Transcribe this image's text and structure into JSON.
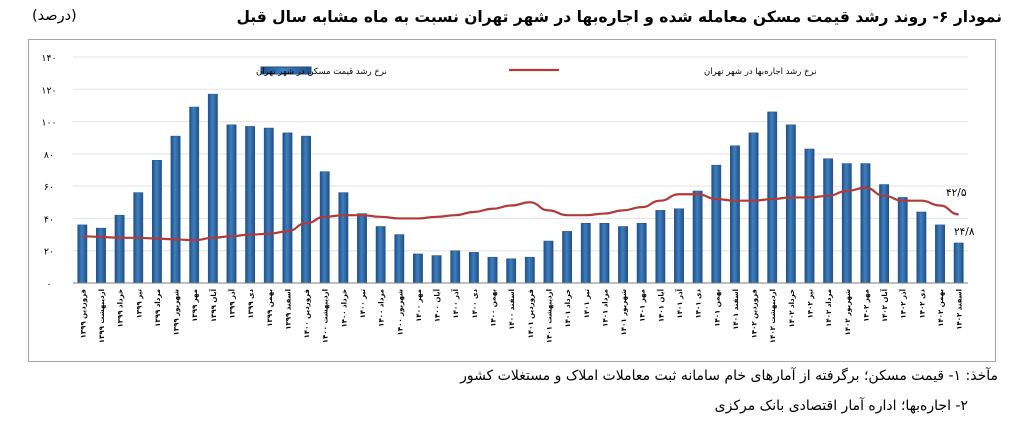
{
  "title": "نمودار ۶- روند رشد قیمت مسکن معامله شده و اجاره‌بها در شهر تهران نسبت به ماه مشابه سال قبل",
  "unit": "(درصد)",
  "sources": {
    "line1": "مآخذ: ۱- قیمت مسکن؛ برگرفته از آمارهای خام سامانه ثبت معاملات املاک و مستغلات کشور",
    "line2": "۲- اجاره‌بها؛ اداره آمار اقتصادی بانک مرکزی"
  },
  "colors": {
    "bar": "#3f7fbf",
    "bar_dark": "#1f4f86",
    "line": "#b33a3a",
    "grid": "#e3e3e3"
  },
  "chart_data": {
    "type": "bar",
    "ylim": [
      0,
      140
    ],
    "yticks": [
      "۰",
      "۲۰",
      "۴۰",
      "۶۰",
      "۸۰",
      "۱۰۰",
      "۱۲۰",
      "۱۴۰"
    ],
    "categories": [
      "فروردین ۱۳۹۹",
      "اردیبهشت ۱۳۹۹",
      "خرداد ۱۳۹۹",
      "تیر ۱۳۹۹",
      "مرداد ۱۳۹۹",
      "شهریور ۱۳۹۹",
      "مهر ۱۳۹۹",
      "آبان ۱۳۹۹",
      "آذر ۱۳۹۹",
      "دی ۱۳۹۹",
      "بهمن ۱۳۹۹",
      "اسفند ۱۳۹۹",
      "فروردین ۱۴۰۰",
      "اردیبهشت ۱۴۰۰",
      "خرداد ۱۴۰۰",
      "تیر ۱۴۰۰",
      "مرداد ۱۴۰۰",
      "شهریور ۱۴۰۰",
      "مهر ۱۴۰۰",
      "آبان ۱۴۰۰",
      "آذر ۱۴۰۰",
      "دی ۱۴۰۰",
      "بهمن ۱۴۰۰",
      "اسفند ۱۴۰۰",
      "فروردین ۱۴۰۱",
      "اردیبهشت ۱۴۰۱",
      "خرداد ۱۴۰۱",
      "تیر ۱۴۰۱",
      "مرداد ۱۴۰۱",
      "شهریور ۱۴۰۱",
      "مهر ۱۴۰۱",
      "آبان ۱۴۰۱",
      "آذر ۱۴۰۱",
      "دی ۱۴۰۱",
      "بهمن ۱۴۰۱",
      "اسفند ۱۴۰۱",
      "فروردین ۱۴۰۲",
      "اردیبهشت ۱۴۰۲",
      "خرداد ۱۴۰۲",
      "تیر ۱۴۰۲",
      "مرداد ۱۴۰۲",
      "شهریور ۱۴۰۲",
      "مهر ۱۴۰۲",
      "آبان ۱۴۰۲",
      "آذر ۱۴۰۲",
      "دی ۱۴۰۲",
      "بهمن ۱۴۰۲",
      "اسفند ۱۴۰۲"
    ],
    "series": [
      {
        "name": "نرخ رشد قیمت مسکن در شهر تهران",
        "type": "bar",
        "values": [
          36,
          34,
          42,
          56,
          76,
          91,
          109,
          117,
          98,
          97,
          96,
          93,
          91,
          69,
          56,
          43,
          35,
          30,
          18,
          17,
          20,
          19,
          16,
          15,
          16,
          26,
          32,
          37,
          37,
          35,
          37,
          45,
          46,
          57,
          73,
          85,
          93,
          106,
          98,
          83,
          77,
          74,
          74,
          61,
          53,
          44,
          36,
          24.8
        ]
      },
      {
        "name": "نرخ رشد اجاره‌بها در شهر تهران",
        "type": "line",
        "values": [
          29,
          28.5,
          28,
          28,
          27.5,
          27,
          26.5,
          28,
          29,
          30,
          30.5,
          32,
          37,
          41,
          42,
          42,
          41,
          40,
          40,
          41,
          42,
          44,
          46,
          48,
          50,
          45,
          42,
          42,
          43,
          45,
          47,
          51,
          55,
          55,
          52,
          51,
          51,
          52,
          53,
          53,
          54,
          57,
          59,
          54,
          51,
          51,
          48,
          42.5
        ]
      }
    ],
    "annotations": [
      "۴۲/۵",
      "۲۴/۸"
    ]
  }
}
